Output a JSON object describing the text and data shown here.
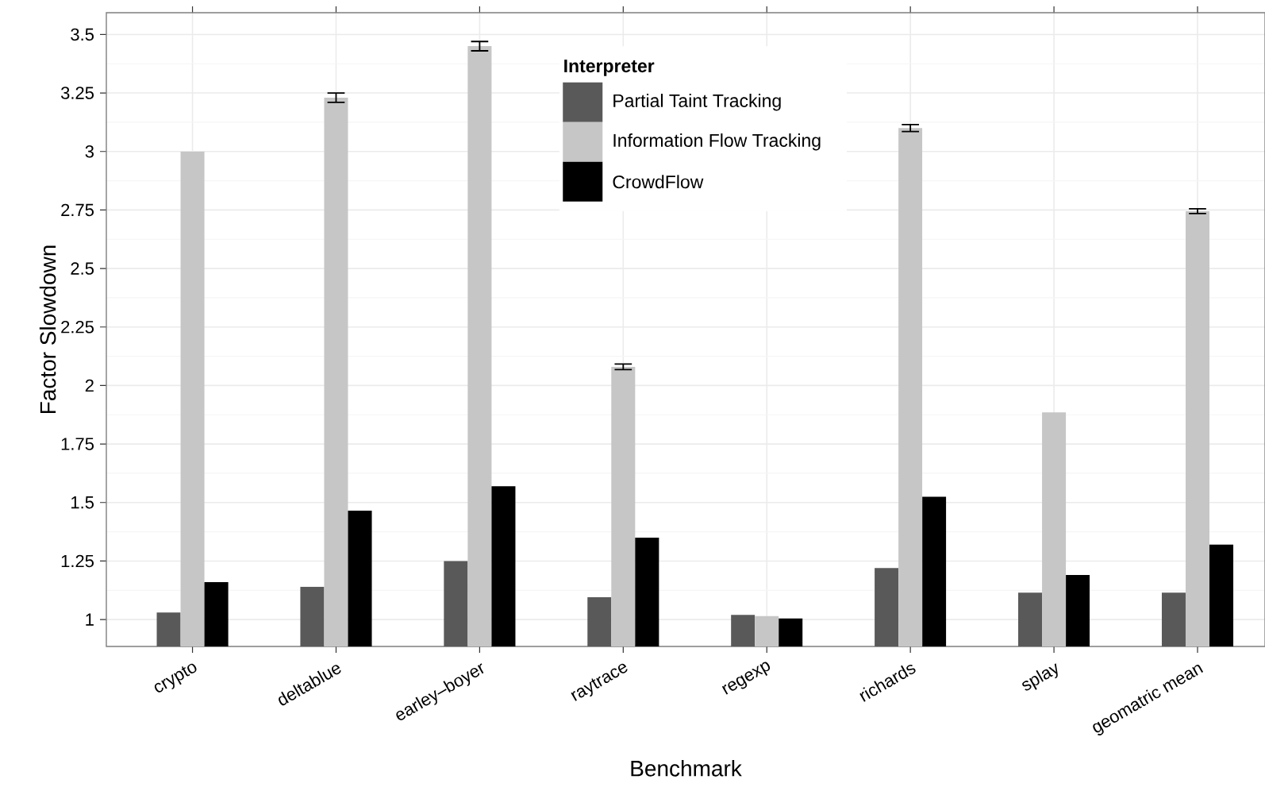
{
  "chart_data": {
    "type": "bar",
    "xlabel": "Benchmark",
    "ylabel": "Factor Slowdown",
    "legend_title": "Interpreter",
    "categories": [
      "crypto",
      "deltablue",
      "earley–boyer",
      "raytrace",
      "regexp",
      "richards",
      "splay",
      "geomatric mean"
    ],
    "series": [
      {
        "name": "Partial Taint Tracking",
        "color": "#595959",
        "values": [
          1.03,
          1.14,
          1.25,
          1.095,
          1.02,
          1.22,
          1.115,
          1.115
        ]
      },
      {
        "name": "Information Flow Tracking",
        "color": "#c6c6c6",
        "values": [
          3.0,
          3.23,
          3.45,
          2.08,
          1.015,
          3.1,
          1.885,
          2.745
        ],
        "errors": [
          null,
          0.02,
          0.02,
          0.012,
          null,
          0.015,
          null,
          0.01
        ]
      },
      {
        "name": "CrowdFlow",
        "color": "#000000",
        "values": [
          1.16,
          1.465,
          1.57,
          1.35,
          1.005,
          1.525,
          1.19,
          1.32
        ]
      }
    ],
    "ylim": [
      0.885,
      3.593
    ],
    "yticks": [
      1,
      1.25,
      1.5,
      1.75,
      2,
      2.25,
      2.5,
      2.75,
      3,
      3.25,
      3.5
    ],
    "grid": true,
    "legend": "top"
  }
}
